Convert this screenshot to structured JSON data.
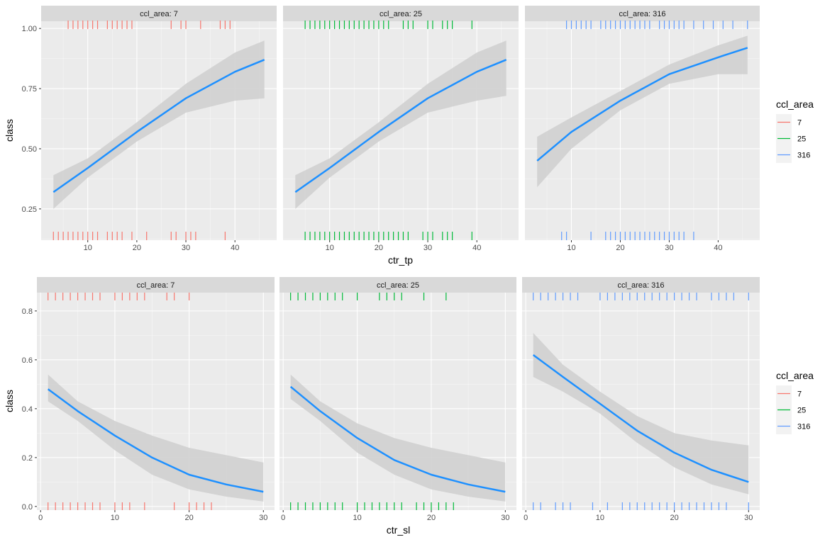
{
  "colors": {
    "panel_bg": "#ebebeb",
    "grid_major": "#ffffff",
    "strip_bg": "#d9d9d9",
    "ribbon": "#d0d0d0",
    "fit_line": "#1e90ff",
    "series": {
      "7": "#f8766d",
      "25": "#00ba38",
      "316": "#619cff"
    }
  },
  "legend": {
    "title": "ccl_area",
    "entries": [
      {
        "key": "7",
        "label": "7"
      },
      {
        "key": "25",
        "label": "25"
      },
      {
        "key": "316",
        "label": "316"
      }
    ]
  },
  "chart_data": [
    {
      "type": "line",
      "description": "faceted logistic fit with 95% confidence ribbon and rug marks",
      "xlabel": "ctr_tp",
      "ylabel": "class",
      "xlim": [
        0.5,
        48.5
      ],
      "ylim": [
        0.12,
        1.03
      ],
      "x_ticks": [
        10,
        20,
        30,
        40
      ],
      "y_ticks": [
        0.25,
        0.5,
        0.75,
        1.0
      ],
      "y_tick_labels": [
        "0.25",
        "0.50",
        "0.75",
        "1.00"
      ],
      "panels": [
        {
          "strip": "ccl_area: 7",
          "key": "7",
          "fit": {
            "x": [
              3,
              10,
              20,
              30,
              40,
              46
            ],
            "y": [
              0.32,
              0.42,
              0.57,
              0.71,
              0.82,
              0.87
            ]
          },
          "ribbon_lower": [
            0.25,
            0.38,
            0.53,
            0.65,
            0.7,
            0.71
          ],
          "ribbon_upper": [
            0.39,
            0.46,
            0.61,
            0.77,
            0.9,
            0.95
          ],
          "rug_top": [
            6,
            7,
            8,
            9,
            10,
            11,
            12,
            14,
            15,
            16,
            17,
            18,
            19,
            27,
            29,
            30,
            33,
            37,
            38,
            39
          ],
          "rug_bottom": [
            3,
            4,
            5,
            6,
            7,
            8,
            9,
            10,
            11,
            12,
            14,
            15,
            16,
            17,
            19,
            22,
            27,
            28,
            30,
            31,
            32,
            38
          ]
        },
        {
          "strip": "ccl_area: 25",
          "key": "25",
          "fit": {
            "x": [
              3,
              10,
              20,
              30,
              40,
              46
            ],
            "y": [
              0.32,
              0.42,
              0.57,
              0.71,
              0.82,
              0.87
            ]
          },
          "ribbon_lower": [
            0.25,
            0.38,
            0.53,
            0.65,
            0.7,
            0.72
          ],
          "ribbon_upper": [
            0.39,
            0.46,
            0.61,
            0.77,
            0.9,
            0.95
          ],
          "rug_top": [
            5,
            6,
            7,
            8,
            9,
            10,
            11,
            12,
            13,
            14,
            15,
            16,
            17,
            18,
            19,
            20,
            21,
            22,
            25,
            26,
            27,
            30,
            31,
            33,
            34,
            35,
            39
          ],
          "rug_bottom": [
            5,
            6,
            7,
            8,
            9,
            10,
            11,
            12,
            13,
            14,
            15,
            16,
            17,
            18,
            19,
            20,
            21,
            22,
            23,
            24,
            25,
            26,
            29,
            30,
            31,
            33,
            34,
            35,
            39
          ]
        },
        {
          "strip": "ccl_area: 316",
          "key": "316",
          "fit": {
            "x": [
              3,
              10,
              20,
              30,
              40,
              46
            ],
            "y": [
              0.45,
              0.57,
              0.7,
              0.81,
              0.88,
              0.92
            ]
          },
          "ribbon_lower": [
            0.34,
            0.5,
            0.66,
            0.77,
            0.81,
            0.81
          ],
          "ribbon_upper": [
            0.55,
            0.63,
            0.74,
            0.85,
            0.93,
            0.97
          ],
          "rug_top": [
            9,
            10,
            11,
            12,
            13,
            14,
            16,
            17,
            18,
            19,
            20,
            21,
            22,
            23,
            24,
            25,
            26,
            28,
            29,
            30,
            31,
            32,
            33,
            35,
            37,
            39,
            41,
            43,
            46
          ],
          "rug_bottom": [
            8,
            9,
            14,
            17,
            18,
            19,
            20,
            21,
            22,
            23,
            24,
            25,
            26,
            27,
            28,
            29,
            30,
            31,
            32,
            33,
            35
          ]
        }
      ]
    },
    {
      "type": "line",
      "description": "faceted logistic fit with 95% confidence ribbon and rug marks",
      "xlabel": "ctr_sl",
      "ylabel": "class",
      "xlim": [
        -0.5,
        31.5
      ],
      "ylim": [
        -0.015,
        0.875
      ],
      "x_ticks": [
        0,
        10,
        20,
        30
      ],
      "y_ticks": [
        0.0,
        0.2,
        0.4,
        0.6,
        0.8
      ],
      "y_tick_labels": [
        "0.0",
        "0.2",
        "0.4",
        "0.6",
        "0.8"
      ],
      "panels": [
        {
          "strip": "ccl_area: 7",
          "key": "7",
          "fit": {
            "x": [
              1,
              5,
              10,
              15,
              20,
              25,
              30
            ],
            "y": [
              0.48,
              0.39,
              0.29,
              0.2,
              0.13,
              0.09,
              0.06
            ]
          },
          "ribbon_lower": [
            0.43,
            0.35,
            0.23,
            0.13,
            0.07,
            0.04,
            0.02
          ],
          "ribbon_upper": [
            0.54,
            0.43,
            0.35,
            0.29,
            0.24,
            0.21,
            0.18
          ],
          "rug_top": [
            1,
            2,
            3,
            4,
            5,
            6,
            7,
            8,
            10,
            11,
            12,
            13,
            14,
            17,
            18,
            20
          ],
          "rug_bottom": [
            1,
            2,
            3,
            4,
            5,
            6,
            7,
            8,
            10,
            11,
            12,
            14,
            18,
            20,
            21,
            22,
            23
          ]
        },
        {
          "strip": "ccl_area: 25",
          "key": "25",
          "fit": {
            "x": [
              1,
              5,
              10,
              15,
              20,
              25,
              30
            ],
            "y": [
              0.49,
              0.39,
              0.28,
              0.19,
              0.13,
              0.09,
              0.06
            ]
          },
          "ribbon_lower": [
            0.44,
            0.35,
            0.22,
            0.13,
            0.07,
            0.04,
            0.02
          ],
          "ribbon_upper": [
            0.54,
            0.43,
            0.34,
            0.28,
            0.24,
            0.21,
            0.18
          ],
          "rug_top": [
            1,
            2,
            3,
            4,
            5,
            6,
            7,
            8,
            10,
            13,
            14,
            15,
            16,
            19,
            22
          ],
          "rug_bottom": [
            1,
            2,
            3,
            4,
            5,
            6,
            7,
            8,
            10,
            11,
            12,
            13,
            14,
            15,
            16,
            18,
            19,
            20,
            21,
            22,
            23
          ]
        },
        {
          "strip": "ccl_area: 316",
          "key": "316",
          "fit": {
            "x": [
              1,
              5,
              10,
              15,
              20,
              25,
              30
            ],
            "y": [
              0.62,
              0.53,
              0.42,
              0.31,
              0.22,
              0.15,
              0.1
            ]
          },
          "ribbon_lower": [
            0.53,
            0.47,
            0.38,
            0.26,
            0.16,
            0.09,
            0.05
          ],
          "ribbon_upper": [
            0.71,
            0.58,
            0.47,
            0.37,
            0.3,
            0.27,
            0.25
          ],
          "rug_top": [
            1,
            2,
            3,
            4,
            5,
            6,
            7,
            10,
            11,
            12,
            13,
            14,
            15,
            16,
            17,
            18,
            19,
            20,
            21,
            22,
            23,
            25,
            26,
            27,
            28,
            30
          ],
          "rug_bottom": [
            1,
            2,
            4,
            5,
            6,
            9,
            11,
            13,
            14,
            15,
            16,
            17,
            18,
            19,
            20,
            21,
            22,
            23,
            24,
            25,
            26,
            27,
            30
          ]
        }
      ]
    }
  ]
}
